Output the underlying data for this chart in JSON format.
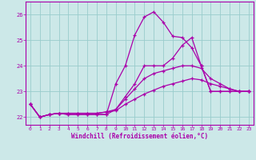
{
  "xlabel": "Windchill (Refroidissement éolien,°C)",
  "xlim": [
    -0.5,
    23.5
  ],
  "ylim": [
    21.7,
    26.5
  ],
  "xticks": [
    0,
    1,
    2,
    3,
    4,
    5,
    6,
    7,
    8,
    9,
    10,
    11,
    12,
    13,
    14,
    15,
    16,
    17,
    18,
    19,
    20,
    21,
    22,
    23
  ],
  "yticks": [
    22,
    23,
    24,
    25,
    26
  ],
  "bg_color": "#cce8e8",
  "line_color": "#aa00aa",
  "grid_color": "#99cccc",
  "lines": [
    {
      "x": [
        0,
        1,
        2,
        3,
        4,
        5,
        6,
        7,
        8,
        9,
        10,
        11,
        12,
        13,
        14,
        15,
        16,
        17,
        18,
        19,
        20,
        21,
        22,
        23
      ],
      "y": [
        22.5,
        22.0,
        22.1,
        22.15,
        22.1,
        22.1,
        22.1,
        22.1,
        22.1,
        23.3,
        24.0,
        25.2,
        25.9,
        26.1,
        25.7,
        25.15,
        25.1,
        24.7,
        24.0,
        23.0,
        23.0,
        23.0,
        23.0,
        23.0
      ]
    },
    {
      "x": [
        0,
        1,
        2,
        3,
        4,
        5,
        6,
        7,
        8,
        9,
        10,
        11,
        12,
        13,
        14,
        15,
        16,
        17,
        18,
        19,
        20,
        21,
        22,
        23
      ],
      "y": [
        22.5,
        22.0,
        22.1,
        22.15,
        22.1,
        22.1,
        22.1,
        22.1,
        22.1,
        22.3,
        22.8,
        23.3,
        24.0,
        24.0,
        24.0,
        24.3,
        24.8,
        25.1,
        24.0,
        23.0,
        23.0,
        23.0,
        23.0,
        23.0
      ]
    },
    {
      "x": [
        0,
        1,
        2,
        3,
        4,
        5,
        6,
        7,
        8,
        9,
        10,
        11,
        12,
        13,
        14,
        15,
        16,
        17,
        18,
        19,
        20,
        21,
        22,
        23
      ],
      "y": [
        22.5,
        22.0,
        22.1,
        22.15,
        22.15,
        22.15,
        22.15,
        22.15,
        22.2,
        22.3,
        22.7,
        23.1,
        23.5,
        23.7,
        23.8,
        23.9,
        24.0,
        24.0,
        23.9,
        23.5,
        23.3,
        23.1,
        23.0,
        23.0
      ]
    },
    {
      "x": [
        0,
        1,
        2,
        3,
        4,
        5,
        6,
        7,
        8,
        9,
        10,
        11,
        12,
        13,
        14,
        15,
        16,
        17,
        18,
        19,
        20,
        21,
        22,
        23
      ],
      "y": [
        22.5,
        22.0,
        22.1,
        22.15,
        22.15,
        22.15,
        22.15,
        22.15,
        22.2,
        22.25,
        22.5,
        22.7,
        22.9,
        23.05,
        23.2,
        23.3,
        23.4,
        23.5,
        23.45,
        23.3,
        23.2,
        23.1,
        23.0,
        23.0
      ]
    }
  ]
}
